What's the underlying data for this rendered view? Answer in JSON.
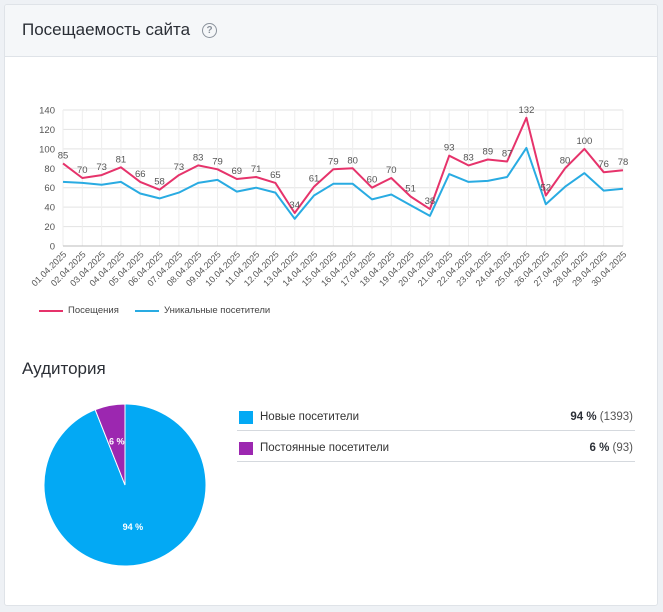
{
  "header": {
    "title": "Посещаемость сайта",
    "help_icon": "question-circle-icon"
  },
  "chart_data": [
    {
      "type": "line",
      "x": [
        "01.04.2025",
        "02.04.2025",
        "03.04.2025",
        "04.04.2025",
        "05.04.2025",
        "06.04.2025",
        "07.04.2025",
        "08.04.2025",
        "09.04.2025",
        "10.04.2025",
        "11.04.2025",
        "12.04.2025",
        "13.04.2025",
        "14.04.2025",
        "15.04.2025",
        "16.04.2025",
        "17.04.2025",
        "18.04.2025",
        "19.04.2025",
        "20.04.2025",
        "21.04.2025",
        "22.04.2025",
        "23.04.2025",
        "24.04.2025",
        "25.04.2025",
        "26.04.2025",
        "27.04.2025",
        "28.04.2025",
        "29.04.2025",
        "30.04.2025"
      ],
      "series": [
        {
          "name": "Посещения",
          "color": "#e6336b",
          "labels": true,
          "values": [
            85,
            70,
            73,
            81,
            66,
            58,
            73,
            83,
            79,
            69,
            71,
            65,
            34,
            61,
            79,
            80,
            60,
            70,
            51,
            38,
            93,
            83,
            89,
            87,
            132,
            52,
            80,
            100,
            76,
            78
          ]
        },
        {
          "name": "Уникальные посетители",
          "color": "#29abe2",
          "labels": false,
          "values": [
            66,
            65,
            63,
            66,
            54,
            49,
            55,
            65,
            68,
            56,
            60,
            55,
            28,
            52,
            64,
            64,
            48,
            53,
            42,
            31,
            74,
            66,
            67,
            71,
            101,
            43,
            61,
            75,
            57,
            59
          ]
        }
      ],
      "ylim": [
        0,
        140
      ],
      "yticks": [
        0,
        20,
        40,
        60,
        80,
        100,
        120,
        140
      ],
      "grid": true,
      "legend": "bottom-left"
    },
    {
      "type": "pie",
      "slices": [
        {
          "label": "Новые посетители",
          "percent": 94,
          "count": 1393,
          "color": "#03a9f4",
          "text": "94 %"
        },
        {
          "label": "Постоянные посетители",
          "percent": 6,
          "count": 93,
          "color": "#9c27b0",
          "text": "6 %"
        }
      ]
    }
  ],
  "audience": {
    "title": "Аудитория",
    "rows": [
      {
        "label": "Новые посетители",
        "pct": "94 %",
        "count": "(1393)",
        "color": "#03a9f4"
      },
      {
        "label": "Постоянные посетители",
        "pct": "6 %",
        "count": "(93)",
        "color": "#9c27b0"
      }
    ]
  }
}
